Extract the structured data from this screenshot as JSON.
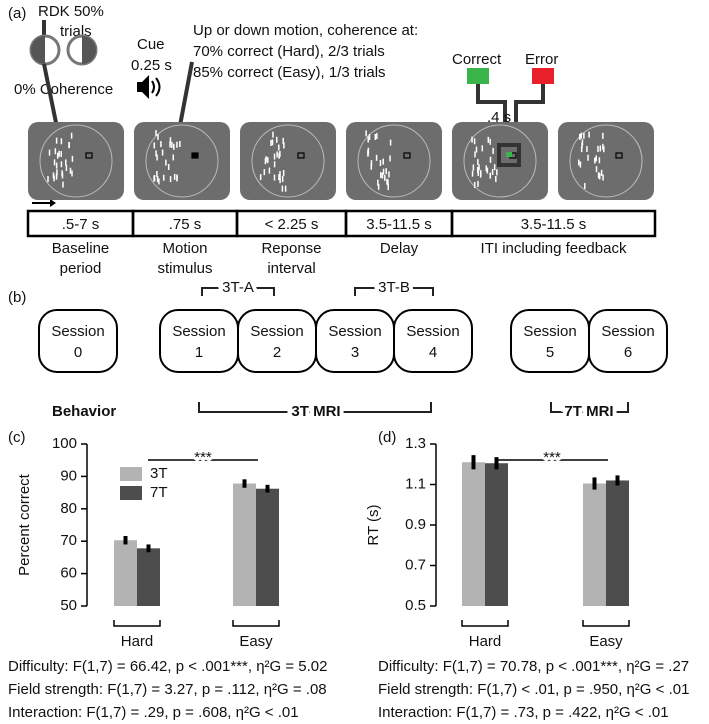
{
  "figure": {
    "panel_a": {
      "label": "(a)",
      "rdk": [
        "RDK 50%",
        "trials"
      ],
      "coherence": "0% Coherence",
      "cue": [
        "Cue",
        "0.25 s"
      ],
      "motion": [
        "Up or down motion, coherence at:",
        "70% correct (Hard), 2/3 trials",
        "85% correct (Easy), 1/3 trials"
      ],
      "feedback": {
        "correct": "Correct",
        "error": "Error",
        "delay": ".4 s"
      },
      "timeline": [
        ".5-7 s",
        ".75 s",
        "< 2.25 s",
        "3.5-11.5 s",
        "3.5-11.5 s"
      ],
      "phases": [
        [
          "Baseline",
          "period"
        ],
        [
          "Motion",
          "stimulus"
        ],
        [
          "Reponse",
          "interval"
        ],
        [
          "Delay"
        ],
        [
          "ITI including feedback"
        ]
      ]
    },
    "panel_b": {
      "label": "(b)",
      "sessions": [
        {
          "label": "Session",
          "number": "0"
        },
        {
          "label": "Session",
          "number": "1"
        },
        {
          "label": "Session",
          "number": "2"
        },
        {
          "label": "Session",
          "number": "3"
        },
        {
          "label": "Session",
          "number": "4"
        },
        {
          "label": "Session",
          "number": "5"
        },
        {
          "label": "Session",
          "number": "6"
        }
      ],
      "groups": {
        "behavior": "Behavior",
        "a": "3T-A",
        "b": "3T-B",
        "mri3": "3T MRI",
        "mri7": "7T MRI"
      }
    }
  },
  "chart_data": [
    {
      "type": "bar",
      "panel_label": "(c)",
      "y_label": "Percent correct",
      "categories": [
        "Hard",
        "Easy"
      ],
      "series": [
        {
          "name": "3T",
          "color": "#b3b3b3",
          "values": [
            70.3,
            87.8
          ],
          "errors": [
            1.3,
            1.3
          ]
        },
        {
          "name": "7T",
          "color": "#4d4d4d",
          "values": [
            67.8,
            86.2
          ],
          "errors": [
            1.2,
            1.2
          ]
        }
      ],
      "ylim": [
        50,
        100
      ],
      "yticks": [
        50,
        60,
        70,
        80,
        90,
        100
      ],
      "legend": "upper left",
      "significance": "***",
      "stats": [
        "Difficulty: F(1,7) = 66.42, p < .001***, η²G = 5.02",
        "Field strength: F(1,7) = 3.27, p = .112, η²G = .08",
        "Interaction: F(1,7) = .29, p = .608, η²G < .01"
      ]
    },
    {
      "type": "bar",
      "panel_label": "(d)",
      "y_label": "RT (s)",
      "categories": [
        "Hard",
        "Easy"
      ],
      "series": [
        {
          "name": "3T",
          "color": "#b3b3b3",
          "values": [
            1.21,
            1.105
          ],
          "errors": [
            0.035,
            0.03
          ]
        },
        {
          "name": "7T",
          "color": "#4d4d4d",
          "values": [
            1.205,
            1.12
          ],
          "errors": [
            0.03,
            0.025
          ]
        }
      ],
      "ylim": [
        0.5,
        1.3
      ],
      "yticks": [
        0.5,
        0.7,
        0.9,
        1.1,
        1.3
      ],
      "legend": false,
      "significance": "***",
      "stats": [
        "Difficulty: F(1,7) = 70.78, p < .001***, η²G = .27",
        "Field strength: F(1,7) < .01, p = .950, η²G < .01",
        "Interaction: F(1,7) = .73, p = .422, η²G < .01"
      ]
    }
  ]
}
